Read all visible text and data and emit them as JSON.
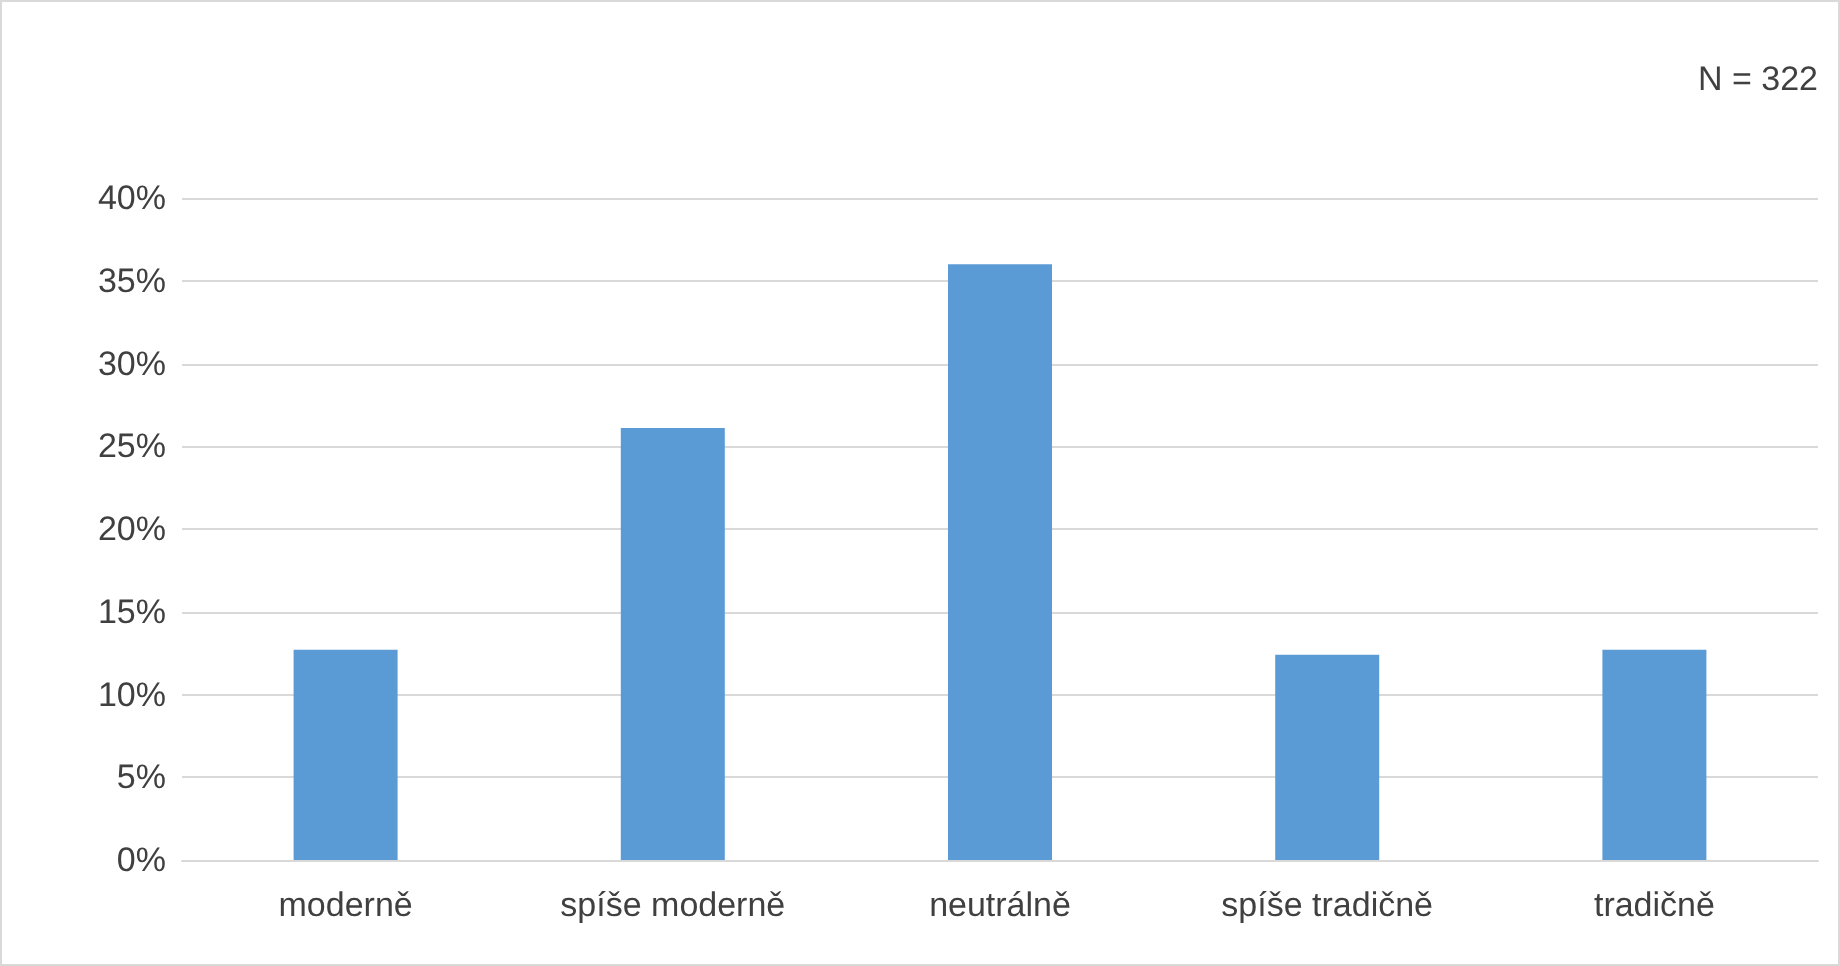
{
  "chart_data": {
    "type": "bar",
    "categories": [
      "moderně",
      "spíše moderně",
      "neutrálně",
      "spíše tradičně",
      "tradičně"
    ],
    "values": [
      12.7,
      26.1,
      36.0,
      12.4,
      12.7
    ],
    "color": "#5b9bd5",
    "ylim": [
      0,
      40
    ],
    "yticks": [
      {
        "value": 0,
        "label": "0%"
      },
      {
        "value": 5,
        "label": "5%"
      },
      {
        "value": 10,
        "label": "10%"
      },
      {
        "value": 15,
        "label": "15%"
      },
      {
        "value": 20,
        "label": "20%"
      },
      {
        "value": 25,
        "label": "25%"
      },
      {
        "value": 30,
        "label": "30%"
      },
      {
        "value": 35,
        "label": "35%"
      },
      {
        "value": 40,
        "label": "40%"
      }
    ],
    "grid": "y",
    "annotations": [
      "N = 322"
    ]
  }
}
